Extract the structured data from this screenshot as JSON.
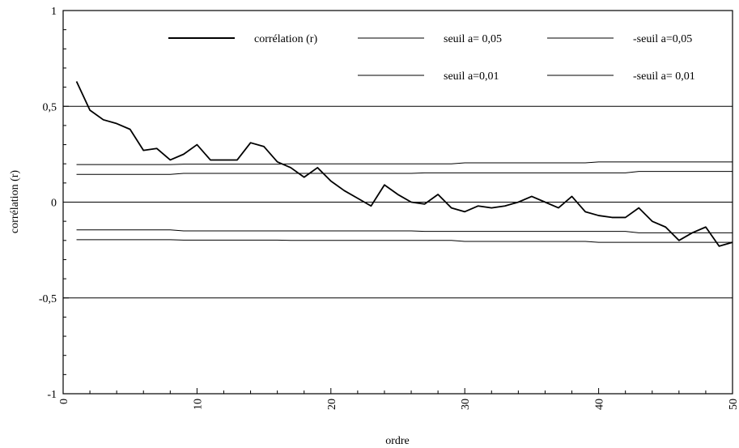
{
  "chart_data": {
    "type": "line",
    "xlabel": "ordre",
    "ylabel": "corrélation (r)",
    "xlim": [
      0,
      50
    ],
    "ylim": [
      -1,
      1
    ],
    "x_ticks": [
      "0",
      "10",
      "20",
      "30",
      "40",
      "50"
    ],
    "y_ticks": [
      "-1",
      "-0,5",
      "0",
      "0,5",
      "1"
    ],
    "grid": false,
    "legend_position": "top",
    "reference_lines": [
      0.5,
      0,
      -0.5
    ],
    "x": [
      1,
      2,
      3,
      4,
      5,
      6,
      7,
      8,
      9,
      10,
      11,
      12,
      13,
      14,
      15,
      16,
      17,
      18,
      19,
      20,
      21,
      22,
      23,
      24,
      25,
      26,
      27,
      28,
      29,
      30,
      31,
      32,
      33,
      34,
      35,
      36,
      37,
      38,
      39,
      40,
      41,
      42,
      43,
      44,
      45,
      46,
      47,
      48,
      49,
      50
    ],
    "series": [
      {
        "name": "corrélation (r)",
        "values": [
          0.63,
          0.48,
          0.43,
          0.41,
          0.38,
          0.27,
          0.28,
          0.22,
          0.25,
          0.3,
          0.22,
          0.22,
          0.22,
          0.31,
          0.29,
          0.21,
          0.18,
          0.13,
          0.18,
          0.11,
          0.06,
          0.02,
          -0.02,
          0.09,
          0.04,
          0.0,
          -0.01,
          0.04,
          -0.03,
          -0.05,
          -0.02,
          -0.03,
          -0.02,
          0.0,
          0.03,
          0.0,
          -0.03,
          0.03,
          -0.05,
          -0.07,
          -0.08,
          -0.08,
          -0.03,
          -0.1,
          -0.13,
          -0.2,
          -0.16,
          -0.13,
          -0.23,
          -0.21
        ],
        "style": "thick"
      },
      {
        "name": "seuil a= 0,05",
        "values": [
          0.196,
          0.196,
          0.196,
          0.196,
          0.196,
          0.196,
          0.196,
          0.196,
          0.198,
          0.198,
          0.198,
          0.198,
          0.198,
          0.198,
          0.198,
          0.198,
          0.2,
          0.2,
          0.2,
          0.2,
          0.2,
          0.2,
          0.2,
          0.2,
          0.2,
          0.2,
          0.2,
          0.2,
          0.2,
          0.205,
          0.205,
          0.205,
          0.205,
          0.205,
          0.205,
          0.205,
          0.205,
          0.205,
          0.205,
          0.21,
          0.21,
          0.21,
          0.21,
          0.21,
          0.21,
          0.21,
          0.21,
          0.21,
          0.21,
          0.21
        ],
        "style": "thin"
      },
      {
        "name": "-seuil a=0,05",
        "values": [
          -0.196,
          -0.196,
          -0.196,
          -0.196,
          -0.196,
          -0.196,
          -0.196,
          -0.196,
          -0.198,
          -0.198,
          -0.198,
          -0.198,
          -0.198,
          -0.198,
          -0.198,
          -0.198,
          -0.2,
          -0.2,
          -0.2,
          -0.2,
          -0.2,
          -0.2,
          -0.2,
          -0.2,
          -0.2,
          -0.2,
          -0.2,
          -0.2,
          -0.2,
          -0.205,
          -0.205,
          -0.205,
          -0.205,
          -0.205,
          -0.205,
          -0.205,
          -0.205,
          -0.205,
          -0.205,
          -0.21,
          -0.21,
          -0.21,
          -0.21,
          -0.21,
          -0.21,
          -0.21,
          -0.21,
          -0.21,
          -0.21,
          -0.21
        ],
        "style": "thin"
      },
      {
        "name": "seuil a=0,01",
        "values": [
          0.145,
          0.145,
          0.145,
          0.145,
          0.145,
          0.145,
          0.145,
          0.145,
          0.15,
          0.15,
          0.15,
          0.15,
          0.15,
          0.15,
          0.15,
          0.15,
          0.15,
          0.15,
          0.15,
          0.15,
          0.15,
          0.15,
          0.15,
          0.15,
          0.15,
          0.15,
          0.153,
          0.153,
          0.153,
          0.153,
          0.153,
          0.153,
          0.153,
          0.153,
          0.153,
          0.153,
          0.153,
          0.153,
          0.153,
          0.153,
          0.153,
          0.153,
          0.16,
          0.16,
          0.16,
          0.16,
          0.16,
          0.16,
          0.16,
          0.16
        ],
        "style": "thin"
      },
      {
        "name": "-seuil a= 0,01",
        "values": [
          -0.145,
          -0.145,
          -0.145,
          -0.145,
          -0.145,
          -0.145,
          -0.145,
          -0.145,
          -0.15,
          -0.15,
          -0.15,
          -0.15,
          -0.15,
          -0.15,
          -0.15,
          -0.15,
          -0.15,
          -0.15,
          -0.15,
          -0.15,
          -0.15,
          -0.15,
          -0.15,
          -0.15,
          -0.15,
          -0.15,
          -0.153,
          -0.153,
          -0.153,
          -0.153,
          -0.153,
          -0.153,
          -0.153,
          -0.153,
          -0.153,
          -0.153,
          -0.153,
          -0.153,
          -0.153,
          -0.153,
          -0.153,
          -0.153,
          -0.16,
          -0.16,
          -0.16,
          -0.16,
          -0.16,
          -0.16,
          -0.16,
          -0.16
        ],
        "style": "thin"
      }
    ]
  }
}
